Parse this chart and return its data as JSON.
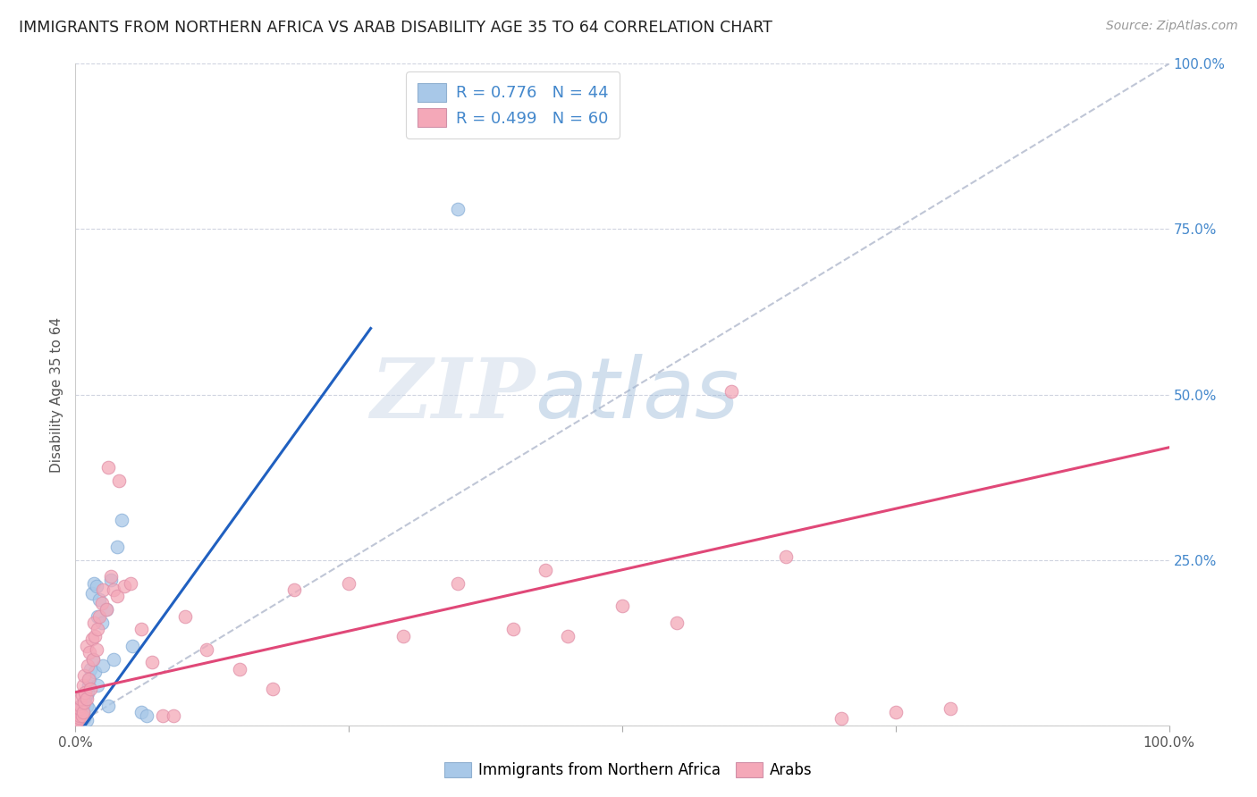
{
  "title": "IMMIGRANTS FROM NORTHERN AFRICA VS ARAB DISABILITY AGE 35 TO 64 CORRELATION CHART",
  "source": "Source: ZipAtlas.com",
  "ylabel": "Disability Age 35 to 64",
  "xlim": [
    0,
    1.0
  ],
  "ylim": [
    0,
    1.0
  ],
  "legend_r1": "R = 0.776",
  "legend_n1": "N = 44",
  "legend_r2": "R = 0.499",
  "legend_n2": "N = 60",
  "color_blue": "#a8c8e8",
  "color_pink": "#f4a8b8",
  "line_blue": "#2060c0",
  "line_pink": "#e04878",
  "line_diag_color": "#b0b8cc",
  "watermark_zip": "ZIP",
  "watermark_atlas": "atlas",
  "title_color": "#222222",
  "source_color": "#999999",
  "ytick_right_color": "#4488cc",
  "background_color": "#ffffff",
  "grid_color": "#d0d4e0",
  "blue_scatter_x": [
    0.002,
    0.003,
    0.003,
    0.004,
    0.004,
    0.005,
    0.005,
    0.005,
    0.006,
    0.006,
    0.007,
    0.007,
    0.008,
    0.008,
    0.009,
    0.01,
    0.01,
    0.01,
    0.011,
    0.012,
    0.012,
    0.013,
    0.014,
    0.015,
    0.016,
    0.017,
    0.018,
    0.019,
    0.02,
    0.02,
    0.022,
    0.024,
    0.025,
    0.028,
    0.03,
    0.032,
    0.035,
    0.038,
    0.042,
    0.052,
    0.06,
    0.065,
    0.35,
    0.001
  ],
  "blue_scatter_y": [
    0.005,
    0.01,
    0.015,
    0.01,
    0.02,
    0.025,
    0.03,
    0.005,
    0.015,
    0.025,
    0.02,
    0.03,
    0.035,
    0.01,
    0.04,
    0.03,
    0.045,
    0.008,
    0.05,
    0.06,
    0.025,
    0.07,
    0.085,
    0.2,
    0.1,
    0.215,
    0.08,
    0.21,
    0.165,
    0.06,
    0.19,
    0.155,
    0.09,
    0.175,
    0.03,
    0.22,
    0.1,
    0.27,
    0.31,
    0.12,
    0.02,
    0.015,
    0.78,
    0.002
  ],
  "pink_scatter_x": [
    0.001,
    0.002,
    0.003,
    0.003,
    0.004,
    0.004,
    0.005,
    0.005,
    0.006,
    0.006,
    0.007,
    0.007,
    0.008,
    0.008,
    0.009,
    0.01,
    0.01,
    0.011,
    0.012,
    0.013,
    0.014,
    0.015,
    0.016,
    0.017,
    0.018,
    0.019,
    0.02,
    0.022,
    0.024,
    0.025,
    0.028,
    0.03,
    0.032,
    0.035,
    0.038,
    0.04,
    0.045,
    0.05,
    0.06,
    0.07,
    0.08,
    0.09,
    0.1,
    0.12,
    0.15,
    0.18,
    0.2,
    0.25,
    0.3,
    0.35,
    0.4,
    0.43,
    0.45,
    0.5,
    0.55,
    0.6,
    0.65,
    0.7,
    0.75,
    0.8
  ],
  "pink_scatter_y": [
    0.005,
    0.008,
    0.012,
    0.02,
    0.015,
    0.025,
    0.03,
    0.04,
    0.015,
    0.045,
    0.02,
    0.06,
    0.035,
    0.075,
    0.05,
    0.04,
    0.12,
    0.09,
    0.07,
    0.11,
    0.055,
    0.13,
    0.1,
    0.155,
    0.135,
    0.115,
    0.145,
    0.165,
    0.185,
    0.205,
    0.175,
    0.39,
    0.225,
    0.205,
    0.195,
    0.37,
    0.21,
    0.215,
    0.145,
    0.095,
    0.015,
    0.015,
    0.165,
    0.115,
    0.085,
    0.055,
    0.205,
    0.215,
    0.135,
    0.215,
    0.145,
    0.235,
    0.135,
    0.18,
    0.155,
    0.505,
    0.255,
    0.01,
    0.02,
    0.025
  ],
  "blue_line_x": [
    0.0,
    0.27
  ],
  "blue_line_y": [
    -0.02,
    0.6
  ],
  "pink_line_x": [
    0.0,
    1.0
  ],
  "pink_line_y": [
    0.05,
    0.42
  ],
  "diag_line_x": [
    0.0,
    1.0
  ],
  "diag_line_y": [
    0.0,
    1.0
  ]
}
